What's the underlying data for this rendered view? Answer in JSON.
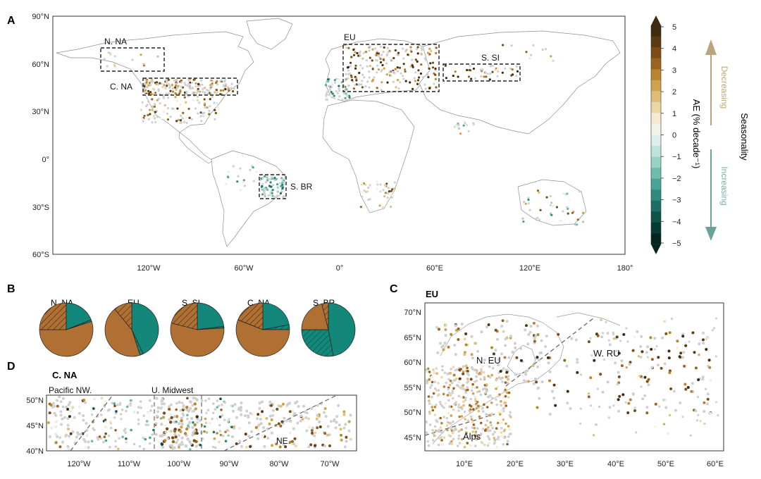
{
  "panel_labels": {
    "a": "A",
    "b": "B",
    "c": "C",
    "d": "D"
  },
  "panelA": {
    "lat_ticks": [
      "90°N",
      "60°N",
      "30°N",
      "0°",
      "30°S",
      "60°S"
    ],
    "lon_ticks": [
      "120°W",
      "60°W",
      "0°",
      "60°E",
      "120°E",
      "180°"
    ],
    "regions": [
      {
        "key": "nna",
        "label": "N. NA"
      },
      {
        "key": "cna",
        "label": "C. NA"
      },
      {
        "key": "eu",
        "label": "EU"
      },
      {
        "key": "ssi",
        "label": "S. SI"
      },
      {
        "key": "sbr",
        "label": "S. BR"
      }
    ]
  },
  "colorbar": {
    "ticks": [
      "5",
      "4",
      "3",
      "2",
      "1",
      "0",
      "−1",
      "−2",
      "−3",
      "−4",
      "−5"
    ],
    "label": "AE (% decade⁻¹)",
    "decreasing": "Decreasing",
    "increasing": "Increasing",
    "seasonality": "Seasonality",
    "colors": [
      "#3d2a0f",
      "#5a3a12",
      "#7a4d16",
      "#9a6420",
      "#b8842e",
      "#cfa24d",
      "#dfbd76",
      "#ecd6a6",
      "#f5ead3",
      "#f4f3e8",
      "#dcefec",
      "#bfe3dc",
      "#98d1c6",
      "#6fbcae",
      "#4aa495",
      "#2e8a7c",
      "#1d6e63",
      "#0f5248",
      "#073a33",
      "#03241f"
    ],
    "arrow_up_color": "#b9a47d",
    "arrow_down_color": "#6aa39a"
  },
  "panelB": {
    "pies": [
      {
        "label": "N. NA",
        "brown": 0.55,
        "brown_hatched": 0.25,
        "teal": 0.19,
        "teal_hatched": 0.01
      },
      {
        "label": "EU",
        "brown": 0.44,
        "brown_hatched": 0.11,
        "teal": 0.43,
        "teal_hatched": 0.02
      },
      {
        "label": "S. SI",
        "brown": 0.55,
        "brown_hatched": 0.21,
        "teal": 0.23,
        "teal_hatched": 0.01
      },
      {
        "label": "C. NA",
        "brown": 0.56,
        "brown_hatched": 0.19,
        "teal": 0.22,
        "teal_hatched": 0.03
      },
      {
        "label": "S. BR",
        "brown": 0.21,
        "brown_hatched": 0.04,
        "teal": 0.47,
        "teal_hatched": 0.28
      }
    ],
    "colors": {
      "brown": "#b07034",
      "teal": "#13877a"
    }
  },
  "panelC": {
    "title": "EU",
    "lat_ticks": [
      "70°N",
      "65°N",
      "60°N",
      "55°N",
      "50°N",
      "45°N"
    ],
    "lon_ticks": [
      "10°E",
      "20°E",
      "30°E",
      "40°E",
      "50°E",
      "60°E"
    ],
    "region_labels": [
      "N. EU",
      "W. RU",
      "Alps"
    ]
  },
  "panelD": {
    "title": "C. NA",
    "lat_ticks": [
      "50°N",
      "45°N",
      "40°N"
    ],
    "lon_ticks": [
      "120°W",
      "110°W",
      "100°W",
      "90°W",
      "80°W",
      "70°W"
    ],
    "region_labels": [
      "Pacific NW.",
      "U. Midwest",
      "NE."
    ]
  }
}
